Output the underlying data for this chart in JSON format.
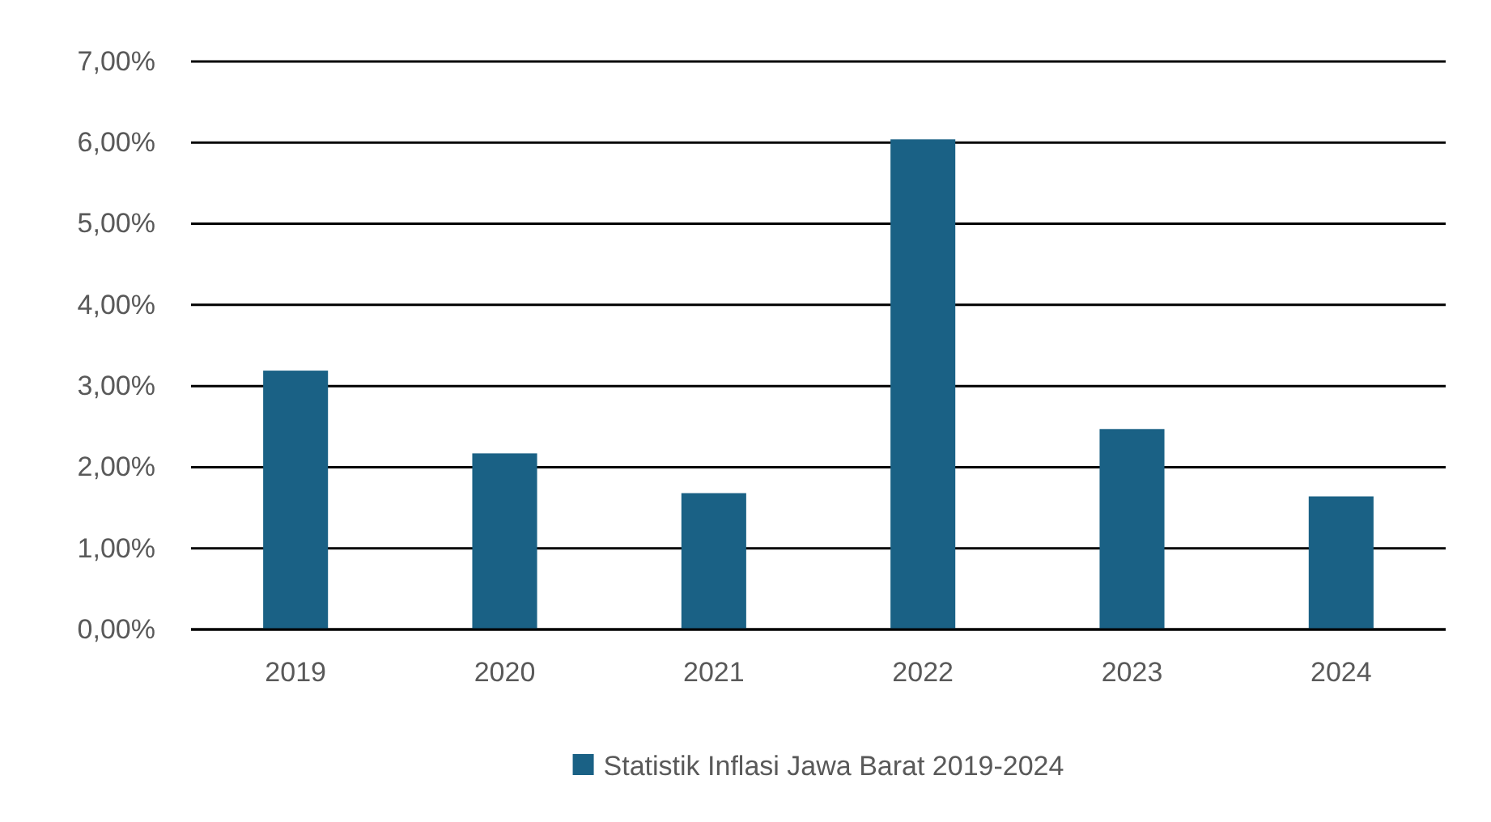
{
  "chart_data": {
    "type": "bar",
    "categories": [
      "2019",
      "2020",
      "2021",
      "2022",
      "2023",
      "2024"
    ],
    "series": [
      {
        "name": "Statistik Inflasi Jawa Barat 2019-2024",
        "color": "#1a6185",
        "values": [
          3.19,
          2.17,
          1.68,
          6.04,
          2.47,
          1.64
        ]
      }
    ],
    "ylim": [
      0,
      7
    ],
    "yticks": [
      {
        "value": 0,
        "label": "0,00%"
      },
      {
        "value": 1,
        "label": "1,00%"
      },
      {
        "value": 2,
        "label": "2,00%"
      },
      {
        "value": 3,
        "label": "3,00%"
      },
      {
        "value": 4,
        "label": "4,00%"
      },
      {
        "value": 5,
        "label": "5,00%"
      },
      {
        "value": 6,
        "label": "6,00%"
      },
      {
        "value": 7,
        "label": "7,00%"
      }
    ],
    "grid": "y",
    "legend": "bottom"
  }
}
